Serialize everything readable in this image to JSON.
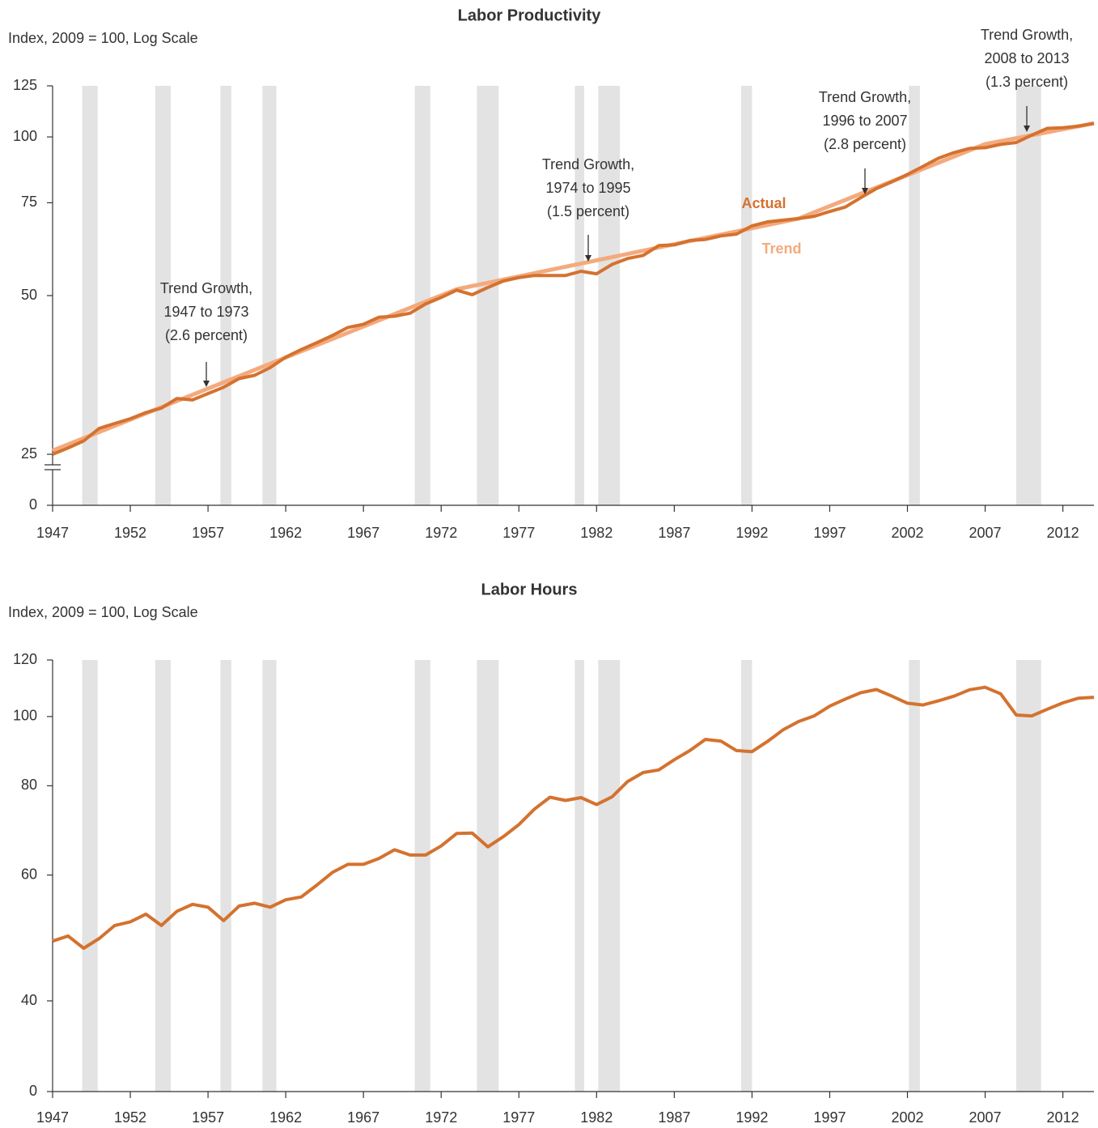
{
  "chart_data": [
    {
      "type": "line",
      "title": "Labor Productivity",
      "y_label": "Index, 2009 = 100, Log Scale",
      "log_scale": true,
      "axis_break": true,
      "xlim": [
        1947,
        2014
      ],
      "xticks": [
        1947,
        1952,
        1957,
        1962,
        1967,
        1972,
        1977,
        1982,
        1987,
        1992,
        1997,
        2002,
        2007,
        2012
      ],
      "ylim": [
        0,
        125
      ],
      "yticks": [
        0,
        25,
        50,
        75,
        100,
        125
      ],
      "recession_color": "#e3e3e3",
      "recessions": [
        [
          1948.9,
          1949.9
        ],
        [
          1953.6,
          1954.6
        ],
        [
          1957.8,
          1958.5
        ],
        [
          1960.5,
          1961.4
        ],
        [
          1970.3,
          1971.3
        ],
        [
          1974.3,
          1975.7
        ],
        [
          1980.6,
          1981.2
        ],
        [
          1982.1,
          1983.5
        ],
        [
          1991.3,
          1992.0
        ],
        [
          2002.1,
          2002.8
        ],
        [
          2009.0,
          2010.6
        ]
      ],
      "series": [
        {
          "name": "Actual",
          "color": "#d4722f",
          "x": [
            1947,
            1948,
            1949,
            1950,
            1951,
            1952,
            1953,
            1954,
            1955,
            1956,
            1957,
            1958,
            1959,
            1960,
            1961,
            1962,
            1963,
            1964,
            1965,
            1966,
            1967,
            1968,
            1969,
            1970,
            1971,
            1972,
            1973,
            1974,
            1975,
            1976,
            1977,
            1978,
            1979,
            1980,
            1981,
            1982,
            1983,
            1984,
            1985,
            1986,
            1987,
            1988,
            1989,
            1990,
            1991,
            1992,
            1993,
            1994,
            1995,
            1996,
            1997,
            1998,
            1999,
            2000,
            2001,
            2002,
            2003,
            2004,
            2005,
            2006,
            2007,
            2008,
            2009,
            2010,
            2011,
            2012,
            2013,
            2014
          ],
          "values": [
            25.0,
            25.7,
            26.5,
            28.0,
            28.6,
            29.2,
            30.0,
            30.6,
            31.9,
            31.7,
            32.6,
            33.5,
            34.8,
            35.3,
            36.5,
            38.2,
            39.5,
            40.7,
            42.0,
            43.5,
            44.1,
            45.5,
            45.7,
            46.3,
            48.2,
            49.6,
            51.2,
            50.2,
            51.8,
            53.3,
            54.1,
            54.6,
            54.6,
            54.6,
            55.6,
            55.0,
            57.3,
            58.8,
            59.6,
            62.2,
            62.4,
            63.6,
            63.9,
            64.9,
            65.4,
            67.8,
            69.0,
            69.5,
            70.0,
            70.7,
            72.2,
            73.6,
            76.7,
            79.8,
            82.2,
            84.9,
            87.9,
            91.1,
            93.4,
            95.1,
            95.4,
            96.8,
            97.6,
            100.8,
            103.8,
            104.1,
            104.8,
            106.1
          ]
        },
        {
          "name": "Trend",
          "color": "#f4aa7d",
          "x": [
            1947,
            1973,
            1995,
            2007,
            2014
          ],
          "values": [
            25.4,
            51.4,
            70.0,
            96.9,
            106.1
          ]
        }
      ],
      "annotations": [
        {
          "lines": [
            "Trend Growth,",
            "1947 to 1973",
            "(2.6 percent)"
          ]
        },
        {
          "lines": [
            "Trend Growth,",
            "1974 to 1995",
            "(1.5 percent)"
          ]
        },
        {
          "lines": [
            "Trend Growth,",
            "1996 to 2007",
            "(2.8 percent)"
          ]
        },
        {
          "lines": [
            "Trend Growth,",
            "2008 to 2013",
            "(1.3 percent)"
          ]
        }
      ]
    },
    {
      "type": "line",
      "title": "Labor Hours",
      "y_label": "Index, 2009 = 100, Log Scale",
      "log_scale": true,
      "axis_break": false,
      "xlim": [
        1947,
        2014
      ],
      "xticks": [
        1947,
        1952,
        1957,
        1962,
        1967,
        1972,
        1977,
        1982,
        1987,
        1992,
        1997,
        2002,
        2007,
        2012
      ],
      "ylim": [
        0,
        120
      ],
      "yticks": [
        0,
        40,
        60,
        80,
        100,
        120
      ],
      "recession_color": "#e3e3e3",
      "recessions": [
        [
          1948.9,
          1949.9
        ],
        [
          1953.6,
          1954.6
        ],
        [
          1957.8,
          1958.5
        ],
        [
          1960.5,
          1961.4
        ],
        [
          1970.3,
          1971.3
        ],
        [
          1974.3,
          1975.7
        ],
        [
          1980.6,
          1981.2
        ],
        [
          1982.1,
          1983.5
        ],
        [
          1991.3,
          1992.0
        ],
        [
          2002.1,
          2002.8
        ],
        [
          2009.0,
          2010.6
        ]
      ],
      "series": [
        {
          "name": "Labor Hours",
          "color": "#d4722f",
          "x": [
            1947,
            1948,
            1949,
            1950,
            1951,
            1952,
            1953,
            1954,
            1955,
            1956,
            1957,
            1958,
            1959,
            1960,
            1961,
            1962,
            1963,
            1964,
            1965,
            1966,
            1967,
            1968,
            1969,
            1970,
            1971,
            1972,
            1973,
            1974,
            1975,
            1976,
            1977,
            1978,
            1979,
            1980,
            1981,
            1982,
            1983,
            1984,
            1985,
            1986,
            1987,
            1988,
            1989,
            1990,
            1991,
            1992,
            1993,
            1994,
            1995,
            1996,
            1997,
            1998,
            1999,
            2000,
            2001,
            2002,
            2003,
            2004,
            2005,
            2006,
            2007,
            2008,
            2009,
            2010,
            2011,
            2012,
            2013,
            2014
          ],
          "values": [
            48.5,
            49.3,
            47.4,
            48.9,
            51.0,
            51.6,
            52.9,
            51.0,
            53.4,
            54.6,
            54.1,
            51.8,
            54.3,
            54.8,
            54.1,
            55.4,
            55.9,
            58.1,
            60.5,
            62.1,
            62.1,
            63.3,
            65.1,
            64.0,
            64.0,
            65.9,
            68.6,
            68.7,
            65.7,
            67.9,
            70.6,
            74.2,
            77.1,
            76.3,
            77.0,
            75.3,
            77.2,
            81.1,
            83.5,
            84.2,
            87.0,
            89.6,
            92.9,
            92.4,
            89.6,
            89.3,
            92.3,
            95.8,
            98.4,
            100.2,
            103.4,
            105.8,
            108.0,
            109.1,
            106.8,
            104.4,
            103.8,
            105.2,
            106.8,
            109.0,
            109.9,
            107.6,
            100.5,
            100.2,
            102.4,
            104.5,
            106.1,
            106.4
          ]
        }
      ]
    }
  ]
}
